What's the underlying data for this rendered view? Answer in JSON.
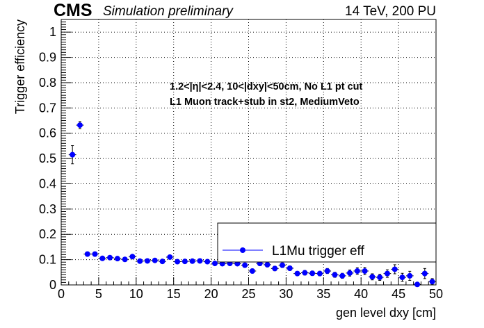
{
  "header": {
    "brand": "CMS",
    "subtitle": "Simulation preliminary",
    "energy": "14 TeV, 200 PU"
  },
  "annotations": [
    "1.2<|η|<2.4, 10<|dxy|<50cm, No L1 pt cut",
    "L1 Muon track+stub in st2, MediumVeto"
  ],
  "legend": {
    "entry": "L1Mu trigger eff",
    "position": "bottom-right"
  },
  "colors": {
    "marker": "#0000ff",
    "error_bar": "#000000",
    "grid": "#000000"
  },
  "chart_data": {
    "type": "scatter",
    "xlabel": "gen level dxy [cm]",
    "ylabel": "Trigger efficiency",
    "xlim": [
      0,
      50
    ],
    "ylim": [
      0,
      1.05
    ],
    "grid": true,
    "xticks": [
      "0",
      "5",
      "10",
      "15",
      "20",
      "25",
      "30",
      "35",
      "40",
      "45",
      "50"
    ],
    "yticks": [
      "0",
      "0.1",
      "0.2",
      "0.3",
      "0.4",
      "0.5",
      "0.6",
      "0.7",
      "0.8",
      "0.9",
      "1"
    ],
    "series": [
      {
        "name": "L1Mu trigger eff",
        "x": [
          1.5,
          2.5,
          3.5,
          4.5,
          5.5,
          6.5,
          7.5,
          8.5,
          9.5,
          10.5,
          11.5,
          12.5,
          13.5,
          14.5,
          15.5,
          16.5,
          17.5,
          18.5,
          19.5,
          20.5,
          21.5,
          22.5,
          23.5,
          24.5,
          25.5,
          26.5,
          27.5,
          28.5,
          29.5,
          30.5,
          31.5,
          32.5,
          33.5,
          34.5,
          35.5,
          36.5,
          37.5,
          38.5,
          39.5,
          40.5,
          41.5,
          42.5,
          43.5,
          44.5,
          45.5,
          46.5,
          47.5,
          48.5,
          49.5
        ],
        "y": [
          0.515,
          0.632,
          0.122,
          0.122,
          0.105,
          0.108,
          0.104,
          0.101,
          0.112,
          0.094,
          0.095,
          0.097,
          0.093,
          0.11,
          0.092,
          0.093,
          0.094,
          0.095,
          0.092,
          0.085,
          0.084,
          0.085,
          0.084,
          0.078,
          0.055,
          0.085,
          0.08,
          0.065,
          0.078,
          0.066,
          0.045,
          0.048,
          0.046,
          0.045,
          0.055,
          0.04,
          0.036,
          0.047,
          0.055,
          0.055,
          0.032,
          0.03,
          0.045,
          0.062,
          0.03,
          0.036,
          0.002,
          0.045,
          0.013
        ],
        "yerr": [
          0.036,
          0.014,
          0.008,
          0.008,
          0.007,
          0.007,
          0.007,
          0.007,
          0.007,
          0.007,
          0.007,
          0.007,
          0.007,
          0.008,
          0.007,
          0.007,
          0.007,
          0.007,
          0.007,
          0.007,
          0.007,
          0.007,
          0.008,
          0.008,
          0.008,
          0.009,
          0.009,
          0.009,
          0.009,
          0.009,
          0.008,
          0.009,
          0.009,
          0.009,
          0.01,
          0.01,
          0.01,
          0.012,
          0.013,
          0.014,
          0.012,
          0.012,
          0.015,
          0.018,
          0.016,
          0.018,
          0.005,
          0.02,
          0.012
        ]
      }
    ]
  }
}
